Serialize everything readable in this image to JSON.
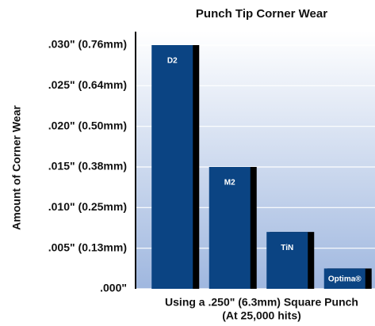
{
  "chart_data": {
    "type": "bar",
    "title": "Punch Tip Corner Wear",
    "y_label": "Amount of Corner Wear",
    "x_label": [
      "Using a .250\" (6.3mm) Square Punch",
      "(At 25,000 hits)"
    ],
    "categories": [
      "D2",
      "M2",
      "TiN",
      "Optima®"
    ],
    "values": [
      0.03,
      0.015,
      0.007,
      0.0025
    ],
    "color": "#0b4483",
    "ylim": [
      0,
      0.03
    ],
    "yticks": [
      {
        "value": 0,
        "label": ".000\""
      },
      {
        "value": 0.005,
        "label": ".005\" (0.13mm)"
      },
      {
        "value": 0.01,
        "label": ".010\" (0.25mm)"
      },
      {
        "value": 0.015,
        "label": ".015\" (0.38mm)"
      },
      {
        "value": 0.02,
        "label": ".020\" (0.50mm)"
      },
      {
        "value": 0.025,
        "label": ".025\" (0.64mm)"
      },
      {
        "value": 0.03,
        "label": ".030\" (0.76mm)"
      }
    ],
    "grid": true
  }
}
